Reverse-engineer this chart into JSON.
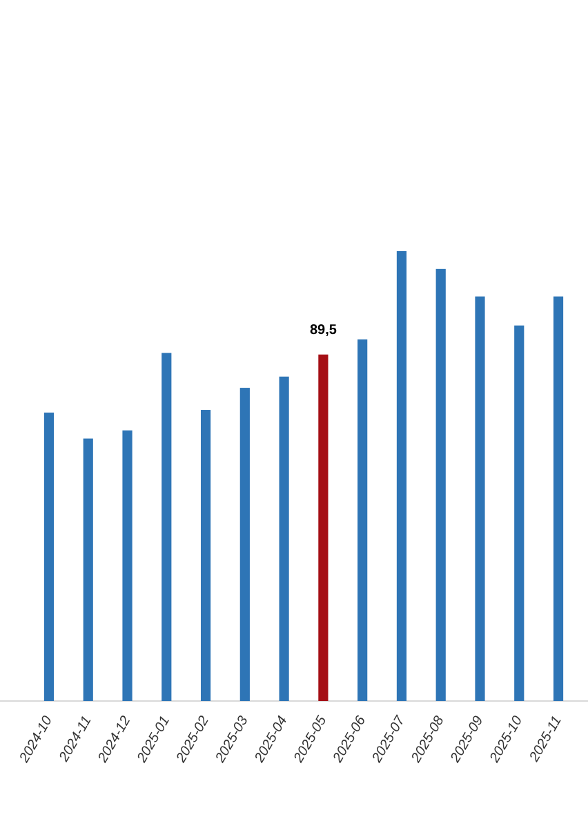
{
  "chart_data": {
    "type": "bar",
    "categories": [
      "2024-10",
      "2024-11",
      "2024-12",
      "2025-01",
      "2025-02",
      "2025-03",
      "2025-04",
      "2025-05",
      "2025-06",
      "2025-07",
      "2025-08",
      "2025-09",
      "2025-10",
      "2025-11"
    ],
    "values": [
      74.5,
      67.8,
      69.9,
      89.9,
      75.2,
      80.9,
      83.8,
      89.5,
      93.4,
      116.2,
      111.6,
      104.5,
      97.0,
      104.5
    ],
    "colors": [
      "#2e75b6",
      "#2e75b6",
      "#2e75b6",
      "#2e75b6",
      "#2e75b6",
      "#2e75b6",
      "#2e75b6",
      "#a50f15",
      "#2e75b6",
      "#2e75b6",
      "#2e75b6",
      "#2e75b6",
      "#2e75b6",
      "#2e75b6"
    ],
    "value_labels": [
      null,
      null,
      null,
      null,
      null,
      null,
      null,
      "89,5",
      null,
      null,
      null,
      null,
      null,
      null
    ]
  }
}
